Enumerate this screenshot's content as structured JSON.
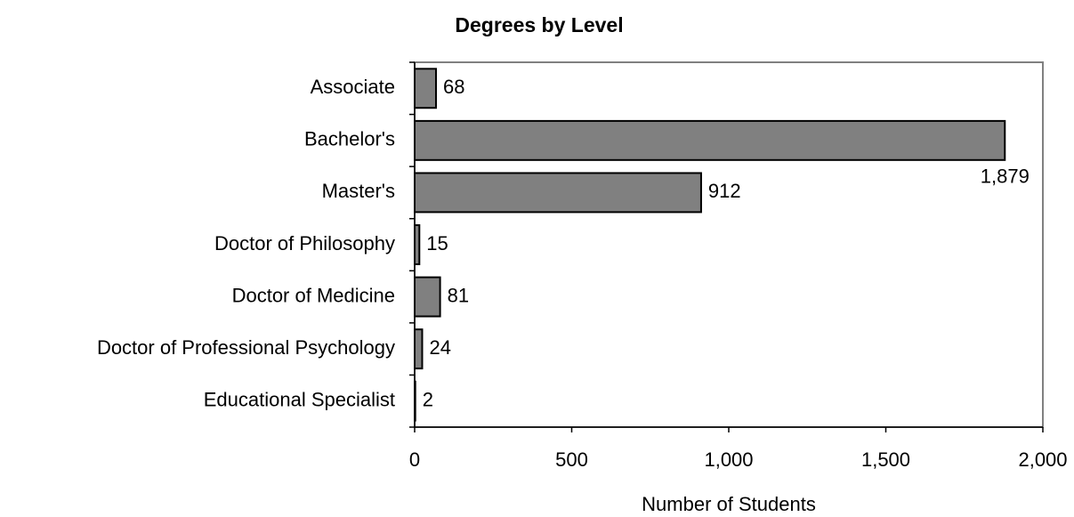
{
  "chart_data": {
    "type": "bar",
    "orientation": "horizontal",
    "title": "Degrees by Level",
    "categories": [
      "Associate",
      "Bachelor's",
      "Master's",
      "Doctor of Philosophy",
      "Doctor of Medicine",
      "Doctor of Professional Psychology",
      "Educational Specialist"
    ],
    "values": [
      68,
      1879,
      912,
      15,
      81,
      24,
      2
    ],
    "value_labels": [
      "68",
      "1,879",
      "912",
      "15",
      "81",
      "24",
      "2"
    ],
    "color": "#808080",
    "xlabel": "Number of Students",
    "xlim": [
      0,
      2000
    ],
    "xticks": [
      0,
      500,
      {
        "value": 1000,
        "label": "1,000"
      },
      {
        "value": 1500,
        "label": "1,500"
      },
      {
        "value": 2000,
        "label": "2,000"
      }
    ],
    "grid": false
  }
}
